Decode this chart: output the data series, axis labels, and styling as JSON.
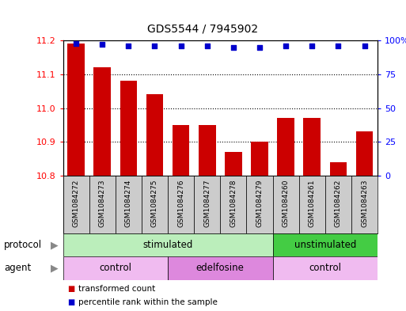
{
  "title": "GDS5544 / 7945902",
  "samples": [
    "GSM1084272",
    "GSM1084273",
    "GSM1084274",
    "GSM1084275",
    "GSM1084276",
    "GSM1084277",
    "GSM1084278",
    "GSM1084279",
    "GSM1084260",
    "GSM1084261",
    "GSM1084262",
    "GSM1084263"
  ],
  "bar_values": [
    11.19,
    11.12,
    11.08,
    11.04,
    10.95,
    10.95,
    10.87,
    10.9,
    10.97,
    10.97,
    10.84,
    10.93
  ],
  "percentile_values": [
    98,
    97,
    96,
    96,
    96,
    96,
    95,
    95,
    96,
    96,
    96,
    96
  ],
  "ylim_left": [
    10.8,
    11.2
  ],
  "ylim_right": [
    0,
    100
  ],
  "yticks_left": [
    10.8,
    10.9,
    11.0,
    11.1,
    11.2
  ],
  "yticks_right": [
    0,
    25,
    50,
    75,
    100
  ],
  "bar_color": "#cc0000",
  "dot_color": "#0000cc",
  "protocol_groups": [
    {
      "label": "stimulated",
      "start": 0,
      "end": 7,
      "color": "#bbeebb"
    },
    {
      "label": "unstimulated",
      "start": 8,
      "end": 11,
      "color": "#44cc44"
    }
  ],
  "agent_groups": [
    {
      "label": "control",
      "start": 0,
      "end": 3,
      "color": "#f0bbf0"
    },
    {
      "label": "edelfosine",
      "start": 4,
      "end": 7,
      "color": "#dd88dd"
    },
    {
      "label": "control",
      "start": 8,
      "end": 11,
      "color": "#f0bbf0"
    }
  ],
  "legend_items": [
    {
      "label": "transformed count",
      "color": "#cc0000"
    },
    {
      "label": "percentile rank within the sample",
      "color": "#0000cc"
    }
  ],
  "sample_box_color": "#cccccc",
  "arrow_color": "#888888"
}
